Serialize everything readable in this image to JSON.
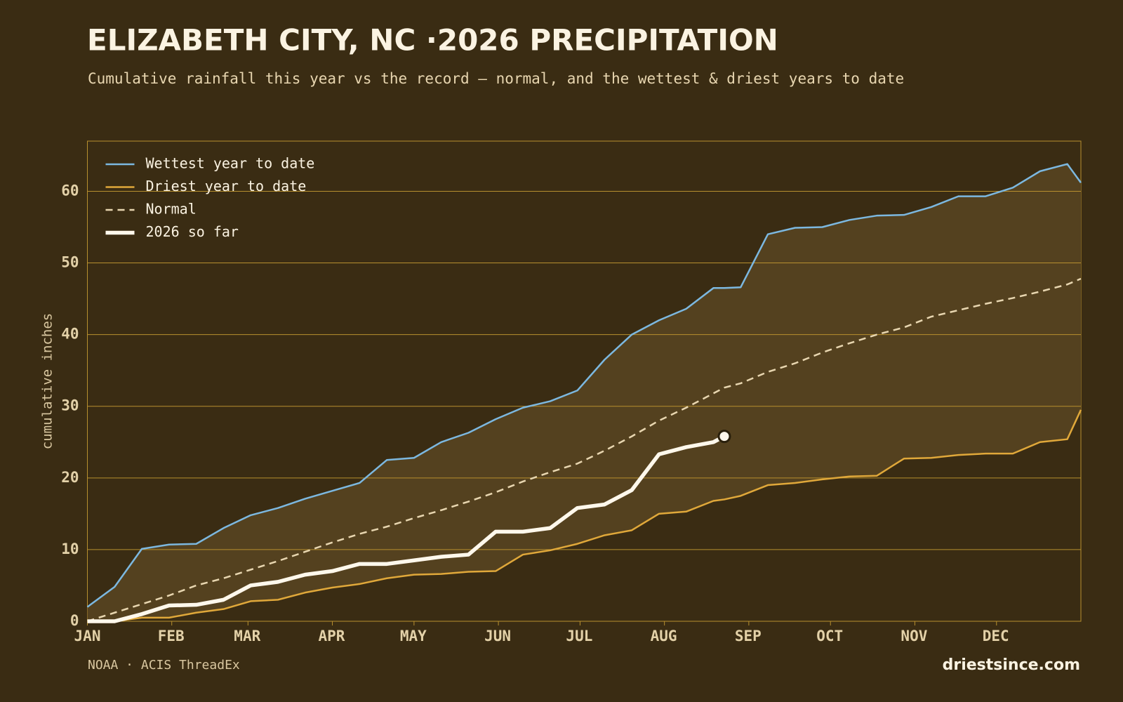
{
  "chart_data": {
    "type": "line",
    "title": "ELIZABETH CITY, NC ·2026 PRECIPITATION",
    "subtitle": "Cumulative rainfall this year vs the record — normal, and the wettest & driest years to date",
    "y_label": "cumulative inches",
    "source": "NOAA · ACIS ThreadEx",
    "brand": "driestsince.com",
    "x": [
      0,
      10,
      20,
      30,
      40,
      50,
      60,
      70,
      80,
      90,
      100,
      110,
      120,
      130,
      140,
      150,
      160,
      170,
      180,
      190,
      200,
      210,
      220,
      230,
      234,
      240,
      250,
      260,
      270,
      280,
      290,
      300,
      310,
      320,
      330,
      340,
      350,
      360,
      365
    ],
    "xlim": [
      0,
      365
    ],
    "xticks": [
      {
        "value": 0,
        "label": "JAN"
      },
      {
        "value": 31,
        "label": "FEB"
      },
      {
        "value": 59,
        "label": "MAR"
      },
      {
        "value": 90,
        "label": "APR"
      },
      {
        "value": 120,
        "label": "MAY"
      },
      {
        "value": 151,
        "label": "JUN"
      },
      {
        "value": 181,
        "label": "JUL"
      },
      {
        "value": 212,
        "label": "AUG"
      },
      {
        "value": 243,
        "label": "SEP"
      },
      {
        "value": 273,
        "label": "OCT"
      },
      {
        "value": 304,
        "label": "NOV"
      },
      {
        "value": 334,
        "label": "DEC"
      }
    ],
    "ylim": [
      0,
      67
    ],
    "yticks": [
      0,
      10,
      20,
      30,
      40,
      50,
      60
    ],
    "grid": true,
    "legend": "upper left",
    "band_color": "#54411f",
    "series": [
      {
        "name": "Wettest year to date",
        "color": "#7cb8e0",
        "style": "solid",
        "values": [
          2.0,
          4.8,
          10.1,
          10.7,
          10.8,
          13.0,
          14.8,
          15.8,
          17.1,
          18.2,
          19.3,
          22.5,
          22.8,
          25.0,
          26.3,
          28.2,
          29.8,
          30.7,
          32.2,
          36.5,
          40.0,
          42.0,
          43.6,
          46.5,
          46.5,
          46.6,
          54.0,
          54.9,
          55.0,
          56.0,
          56.6,
          56.7,
          57.8,
          59.3,
          59.3,
          60.5,
          62.8,
          63.8,
          61.2
        ]
      },
      {
        "name": "Driest year to date",
        "color": "#e0a83a",
        "style": "solid",
        "values": [
          0,
          0,
          0.5,
          0.5,
          1.2,
          1.7,
          2.8,
          3.0,
          4.0,
          4.7,
          5.2,
          6.0,
          6.5,
          6.6,
          6.9,
          7.0,
          9.3,
          9.9,
          10.8,
          12.0,
          12.7,
          15.0,
          15.3,
          16.8,
          17.0,
          17.5,
          19.0,
          19.3,
          19.8,
          20.2,
          20.3,
          22.7,
          22.8,
          23.2,
          23.4,
          23.4,
          25.0,
          25.4,
          29.5
        ]
      },
      {
        "name": "Normal",
        "color": "#e8d6b0",
        "style": "dashed",
        "values": [
          0,
          1.2,
          2.4,
          3.6,
          5.0,
          6.0,
          7.2,
          8.4,
          9.7,
          11.0,
          12.2,
          13.2,
          14.4,
          15.5,
          16.7,
          18.0,
          19.5,
          20.8,
          22.0,
          23.8,
          25.8,
          28.0,
          29.8,
          31.8,
          32.6,
          33.2,
          34.8,
          36.0,
          37.5,
          38.8,
          40.0,
          41.0,
          42.5,
          43.4,
          44.3,
          45.1,
          46.0,
          47.0,
          47.8
        ]
      },
      {
        "name": "2026 so far",
        "color": "#fff8ec",
        "style": "bold",
        "values": [
          0,
          0,
          1.0,
          2.2,
          2.3,
          3.0,
          5.0,
          5.5,
          6.5,
          7.0,
          8.0,
          8.0,
          8.5,
          9.0,
          9.3,
          12.5,
          12.5,
          13.0,
          15.8,
          16.3,
          18.3,
          23.3,
          24.3,
          25.0,
          25.8,
          null,
          null,
          null,
          null,
          null,
          null,
          null,
          null,
          null,
          null,
          null,
          null,
          null,
          null
        ]
      }
    ]
  }
}
